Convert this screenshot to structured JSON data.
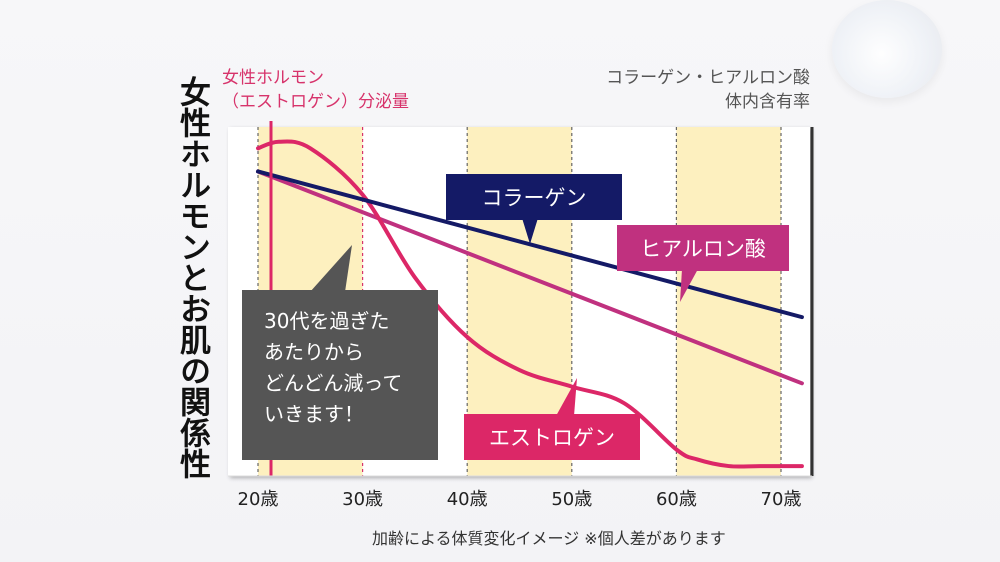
{
  "title": "女性ホルモンとお肌の関係性",
  "left_axis_label": [
    "女性ホルモン",
    "（エストロゲン）分泌量"
  ],
  "right_axis_label": [
    "コラーゲン・ヒアルロン酸",
    "体内含有率"
  ],
  "callout_lines": [
    "30代を過ぎた",
    "あたりから",
    "どんどん減って",
    "いきます！"
  ],
  "footnote": "加齢による体質変化イメージ ※個人差があります",
  "colors": {
    "collagen": "#141a66",
    "hyaluronic": "#c0317f",
    "estrogen": "#dc2767",
    "band": "#fdf0bf",
    "callout": "#555555"
  },
  "chart_data": {
    "type": "line",
    "xlabel": "",
    "ylabel": "",
    "x_ticks": [
      "20歳",
      "30歳",
      "40歳",
      "50歳",
      "60歳",
      "70歳"
    ],
    "x_tick_values": [
      20,
      30,
      40,
      50,
      60,
      70
    ],
    "xlim": [
      20,
      72
    ],
    "ylim": [
      0,
      100
    ],
    "y_ticks": "none (conceptual image)",
    "grid": "alternating shaded decade bands with dashed vertical lines",
    "series": [
      {
        "name": "コラーゲン",
        "style": "straight line",
        "x": [
          20,
          72
        ],
        "y": [
          92,
          48
        ]
      },
      {
        "name": "ヒアルロン酸",
        "style": "straight line",
        "x": [
          20,
          72
        ],
        "y": [
          92,
          28
        ]
      },
      {
        "name": "エストロゲン",
        "style": "smooth curve",
        "x": [
          20,
          22,
          25,
          30,
          35,
          40,
          45,
          50,
          55,
          60,
          62,
          65,
          68,
          72
        ],
        "y": [
          99,
          101,
          99,
          85,
          60,
          42,
          32,
          27,
          22,
          8,
          5,
          3,
          3,
          3
        ]
      }
    ]
  }
}
